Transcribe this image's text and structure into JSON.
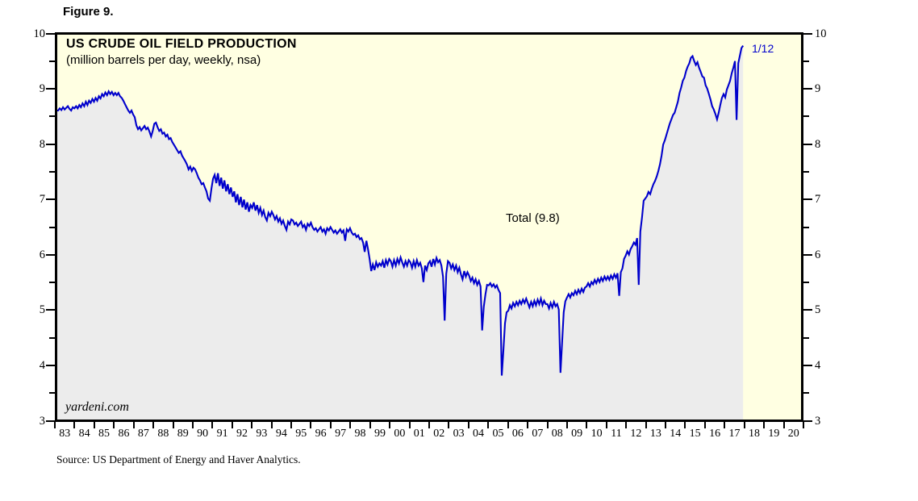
{
  "figure_label": "Figure 9.",
  "header": {
    "title": "US CRUDE OIL FIELD PRODUCTION",
    "subtitle": "(million barrels per day, weekly, nsa)"
  },
  "annotations": {
    "series_label": "Total (9.8)",
    "latest_point_label": "1/12",
    "watermark": "yardeni.com"
  },
  "source_note": "Source: US Department of Energy and Haver Analytics.",
  "colors": {
    "plot_background": "#FFFFE2",
    "area_fill": "#ECECEC",
    "line": "#0000CC",
    "frame": "#000000",
    "text": "#000000",
    "latest_label": "#0000CC"
  },
  "chart_data": {
    "type": "area",
    "title": "US CRUDE OIL FIELD PRODUCTION",
    "subtitle": "(million barrels per day, weekly, nsa)",
    "ylabel": "million barrels per day",
    "ylim": [
      3,
      10
    ],
    "y_major_ticks": [
      10,
      9,
      8,
      7,
      6,
      5,
      4,
      3
    ],
    "y_minor_tick_step": 0.5,
    "x_start_year": 1983,
    "x_end_year": 2021,
    "x_tick_labels": [
      "83",
      "84",
      "85",
      "86",
      "87",
      "88",
      "89",
      "90",
      "91",
      "92",
      "93",
      "94",
      "95",
      "96",
      "97",
      "98",
      "99",
      "00",
      "01",
      "02",
      "03",
      "04",
      "05",
      "06",
      "07",
      "08",
      "09",
      "10",
      "11",
      "12",
      "13",
      "14",
      "15",
      "16",
      "17",
      "18",
      "19",
      "20"
    ],
    "grid": false,
    "legend": "none",
    "axis_labels_both_sides": true,
    "annotations": [
      {
        "text": "Total (9.8)",
        "x": 2005.6,
        "y": 6.6,
        "color": "#000000"
      },
      {
        "text": "1/12",
        "x": 2018.3,
        "y": 9.8,
        "color": "#0000CC"
      }
    ],
    "latest_point": {
      "date_label": "1/12",
      "value": 9.8
    },
    "series": [
      {
        "name": "Total",
        "frequency": "monthly",
        "start": "1983-01",
        "values": [
          8.62,
          8.66,
          8.63,
          8.68,
          8.64,
          8.67,
          8.7,
          8.65,
          8.62,
          8.68,
          8.66,
          8.7,
          8.66,
          8.72,
          8.68,
          8.75,
          8.7,
          8.78,
          8.72,
          8.8,
          8.76,
          8.83,
          8.78,
          8.85,
          8.8,
          8.88,
          8.84,
          8.92,
          8.88,
          8.95,
          8.9,
          8.97,
          8.92,
          8.96,
          8.9,
          8.94,
          8.9,
          8.94,
          8.88,
          8.85,
          8.8,
          8.74,
          8.68,
          8.62,
          8.58,
          8.62,
          8.55,
          8.5,
          8.35,
          8.28,
          8.32,
          8.26,
          8.3,
          8.34,
          8.28,
          8.31,
          8.24,
          8.15,
          8.25,
          8.38,
          8.4,
          8.32,
          8.25,
          8.28,
          8.2,
          8.22,
          8.15,
          8.18,
          8.1,
          8.12,
          8.05,
          8.0,
          7.95,
          7.9,
          7.85,
          7.88,
          7.8,
          7.75,
          7.7,
          7.64,
          7.55,
          7.6,
          7.52,
          7.58,
          7.55,
          7.48,
          7.4,
          7.35,
          7.28,
          7.3,
          7.22,
          7.15,
          7.02,
          6.98,
          7.2,
          7.38,
          7.45,
          7.3,
          7.48,
          7.25,
          7.4,
          7.2,
          7.35,
          7.15,
          7.28,
          7.1,
          7.22,
          7.05,
          7.15,
          6.95,
          7.1,
          6.9,
          7.05,
          6.86,
          7.0,
          6.82,
          6.95,
          6.78,
          6.9,
          6.85,
          6.95,
          6.8,
          6.9,
          6.76,
          6.85,
          6.72,
          6.8,
          6.68,
          6.62,
          6.76,
          6.7,
          6.78,
          6.72,
          6.64,
          6.7,
          6.6,
          6.66,
          6.56,
          6.62,
          6.52,
          6.45,
          6.6,
          6.55,
          6.64,
          6.62,
          6.55,
          6.58,
          6.52,
          6.56,
          6.6,
          6.5,
          6.54,
          6.45,
          6.56,
          6.52,
          6.58,
          6.5,
          6.45,
          6.48,
          6.42,
          6.46,
          6.5,
          6.42,
          6.46,
          6.38,
          6.48,
          6.44,
          6.5,
          6.45,
          6.4,
          6.44,
          6.38,
          6.42,
          6.46,
          6.4,
          6.44,
          6.25,
          6.46,
          6.42,
          6.48,
          6.4,
          6.36,
          6.38,
          6.32,
          6.35,
          6.28,
          6.3,
          6.22,
          6.05,
          6.25,
          6.1,
          5.92,
          5.7,
          5.82,
          5.72,
          5.86,
          5.78,
          5.84,
          5.8,
          5.88,
          5.76,
          5.9,
          5.82,
          5.92,
          5.88,
          5.78,
          5.9,
          5.8,
          5.92,
          5.84,
          5.95,
          5.86,
          5.78,
          5.88,
          5.8,
          5.9,
          5.86,
          5.76,
          5.88,
          5.78,
          5.9,
          5.8,
          5.85,
          5.75,
          5.5,
          5.8,
          5.72,
          5.84,
          5.88,
          5.78,
          5.92,
          5.82,
          5.94,
          5.86,
          5.9,
          5.8,
          5.6,
          4.8,
          5.65,
          5.88,
          5.85,
          5.75,
          5.82,
          5.72,
          5.8,
          5.68,
          5.76,
          5.64,
          5.55,
          5.7,
          5.6,
          5.68,
          5.62,
          5.52,
          5.58,
          5.48,
          5.55,
          5.45,
          5.52,
          5.42,
          4.62,
          5.05,
          5.28,
          5.45,
          5.44,
          5.48,
          5.42,
          5.46,
          5.4,
          5.44,
          5.36,
          5.3,
          3.8,
          4.25,
          4.75,
          4.95,
          4.98,
          5.08,
          5.02,
          5.12,
          5.06,
          5.14,
          5.08,
          5.16,
          5.1,
          5.18,
          5.12,
          5.2,
          5.12,
          5.04,
          5.14,
          5.06,
          5.16,
          5.08,
          5.18,
          5.1,
          5.2,
          5.08,
          5.16,
          5.1,
          5.1,
          5.02,
          5.12,
          5.04,
          5.14,
          5.06,
          5.1,
          5.0,
          3.85,
          4.4,
          4.95,
          5.15,
          5.22,
          5.28,
          5.22,
          5.3,
          5.26,
          5.34,
          5.28,
          5.36,
          5.3,
          5.38,
          5.32,
          5.4,
          5.42,
          5.48,
          5.42,
          5.5,
          5.46,
          5.54,
          5.48,
          5.56,
          5.5,
          5.58,
          5.52,
          5.6,
          5.54,
          5.6,
          5.54,
          5.62,
          5.56,
          5.64,
          5.58,
          5.66,
          5.25,
          5.68,
          5.75,
          5.92,
          5.98,
          6.06,
          6.0,
          6.1,
          6.15,
          6.22,
          6.18,
          6.3,
          5.45,
          6.42,
          6.68,
          6.98,
          7.02,
          7.06,
          7.14,
          7.1,
          7.2,
          7.28,
          7.34,
          7.42,
          7.52,
          7.64,
          7.8,
          8.0,
          8.08,
          8.18,
          8.28,
          8.38,
          8.46,
          8.54,
          8.58,
          8.68,
          8.78,
          8.94,
          9.04,
          9.16,
          9.22,
          9.34,
          9.42,
          9.48,
          9.58,
          9.61,
          9.52,
          9.45,
          9.5,
          9.4,
          9.32,
          9.24,
          9.22,
          9.08,
          9.02,
          8.92,
          8.82,
          8.7,
          8.64,
          8.56,
          8.46,
          8.58,
          8.72,
          8.85,
          8.92,
          8.86,
          9.0,
          9.08,
          9.16,
          9.3,
          9.4,
          9.52,
          8.45,
          9.48,
          9.62,
          9.76,
          9.8
        ]
      }
    ]
  }
}
